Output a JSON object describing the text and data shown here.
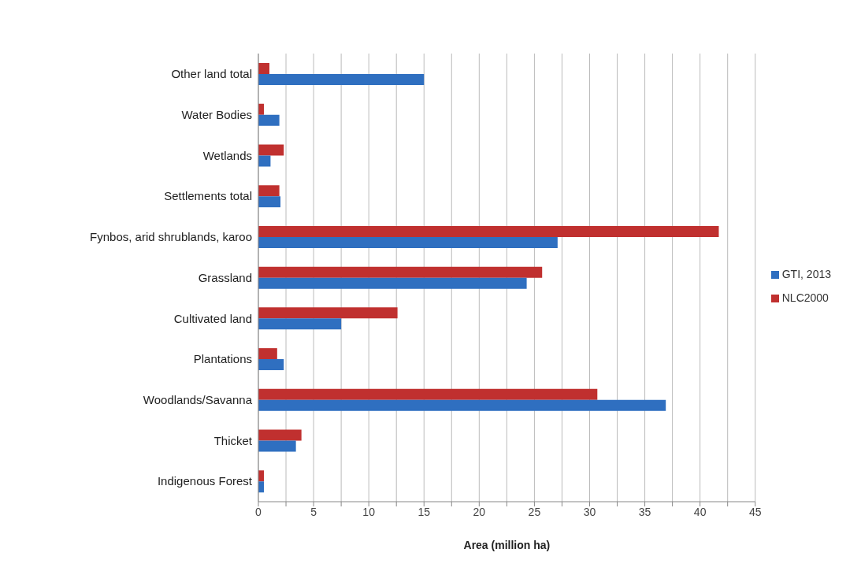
{
  "chart_data": {
    "type": "bar",
    "orientation": "horizontal",
    "xlabel": "Area (million ha)",
    "categories": [
      "Other land total",
      "Water Bodies",
      "Wetlands",
      "Settlements total",
      "Fynbos, arid shrublands, karoo",
      "Grassland",
      "Cultivated land",
      "Plantations",
      "Woodlands/Savanna",
      "Thicket",
      "Indigenous Forest"
    ],
    "series": [
      {
        "name": "NLC2000",
        "color": "#c0302f",
        "values": [
          1.0,
          0.5,
          2.3,
          1.9,
          41.7,
          25.7,
          12.6,
          1.7,
          30.7,
          3.9,
          0.5
        ]
      },
      {
        "name": "GTI, 2013",
        "color": "#2f6fc0",
        "values": [
          15.0,
          1.9,
          1.1,
          2.0,
          27.1,
          24.3,
          7.5,
          2.3,
          36.9,
          3.4,
          0.5
        ]
      }
    ],
    "xlim": [
      0,
      45
    ],
    "xticks": [
      0,
      {
        "value": 2.5,
        "label": null
      },
      5,
      {
        "value": 7.5,
        "label": null
      },
      10,
      {
        "value": 12.5,
        "label": null
      },
      15,
      {
        "value": 17.5,
        "label": null
      },
      20,
      {
        "value": 22.5,
        "label": null
      },
      25,
      {
        "value": 27.5,
        "label": null
      },
      30,
      {
        "value": 32.5,
        "label": null
      },
      35,
      {
        "value": 37.5,
        "label": null
      },
      40,
      {
        "value": 42.5,
        "label": null
      },
      45
    ],
    "grid": "x",
    "legend": "right"
  }
}
